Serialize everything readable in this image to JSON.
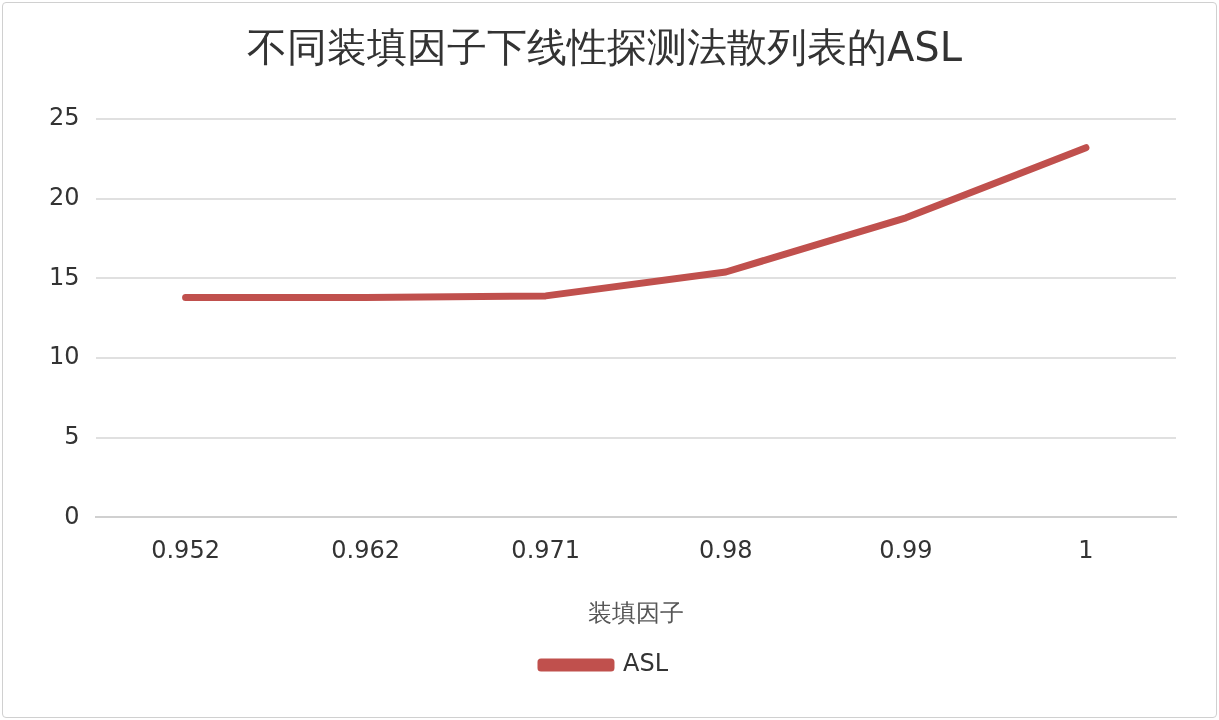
{
  "chart_data": {
    "type": "line",
    "title": "不同装填因子下线性探测法散列表的ASL",
    "xlabel": "装填因子",
    "categories": [
      "0.952",
      "0.962",
      "0.971",
      "0.98",
      "0.99",
      "1"
    ],
    "series": [
      {
        "name": "ASL",
        "color": "#c0504d",
        "values": [
          13.8,
          13.8,
          13.9,
          15.4,
          18.8,
          23.2
        ]
      }
    ],
    "ylim": [
      0,
      25
    ],
    "yticks": [
      0,
      5,
      10,
      15,
      20,
      25
    ],
    "grid": "y",
    "legend": "bottom",
    "marker": "none",
    "line_style": "solid"
  }
}
